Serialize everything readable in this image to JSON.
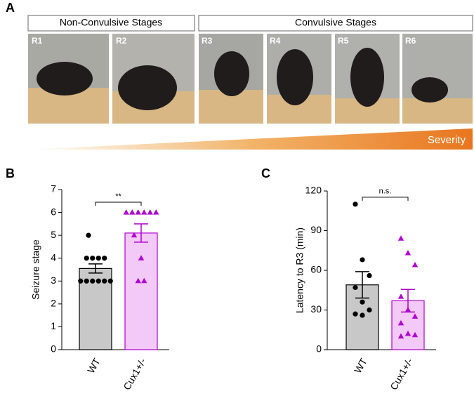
{
  "panel_a": {
    "label": "A",
    "groups": [
      "Non-Convulsive Stages",
      "Convulsive Stages"
    ],
    "stages": [
      "R1",
      "R2",
      "R3",
      "R4",
      "R5",
      "R6"
    ],
    "scale_label": "Severity"
  },
  "chart_data": [
    {
      "type": "bar",
      "panel_label": "B",
      "ylabel": "Seizure stage",
      "categories": [
        "WT",
        "Cux1+/-"
      ],
      "values": [
        3.55,
        5.1
      ],
      "errors": [
        0.2,
        0.4
      ],
      "colors": [
        "#c8c8c8",
        "#f3c9f7"
      ],
      "edge_colors": [
        "#000000",
        "#b000d0"
      ],
      "points": [
        [
          5,
          4,
          4,
          4,
          4,
          3,
          3,
          3,
          3,
          3,
          3
        ],
        [
          6,
          6,
          6,
          6,
          6,
          6,
          5,
          4,
          3,
          3
        ]
      ],
      "significance": "**",
      "ylim": [
        0,
        7
      ],
      "yticks": [
        0,
        1,
        2,
        3,
        4,
        5,
        6,
        7
      ]
    },
    {
      "type": "bar",
      "panel_label": "C",
      "ylabel": "Latency to R3 (min)",
      "categories": [
        "WT",
        "Cux1+/-"
      ],
      "values": [
        49,
        37
      ],
      "errors": [
        10,
        8.5
      ],
      "colors": [
        "#c8c8c8",
        "#f3c9f7"
      ],
      "edge_colors": [
        "#000000",
        "#b000d0"
      ],
      "points": [
        [
          110,
          68,
          56,
          47,
          36,
          30,
          27,
          26
        ],
        [
          84,
          73,
          64,
          40,
          30,
          25,
          20,
          12,
          11,
          10
        ]
      ],
      "significance": "n.s.",
      "ylim": [
        0,
        120
      ],
      "yticks": [
        0,
        30,
        60,
        90,
        120
      ]
    }
  ]
}
